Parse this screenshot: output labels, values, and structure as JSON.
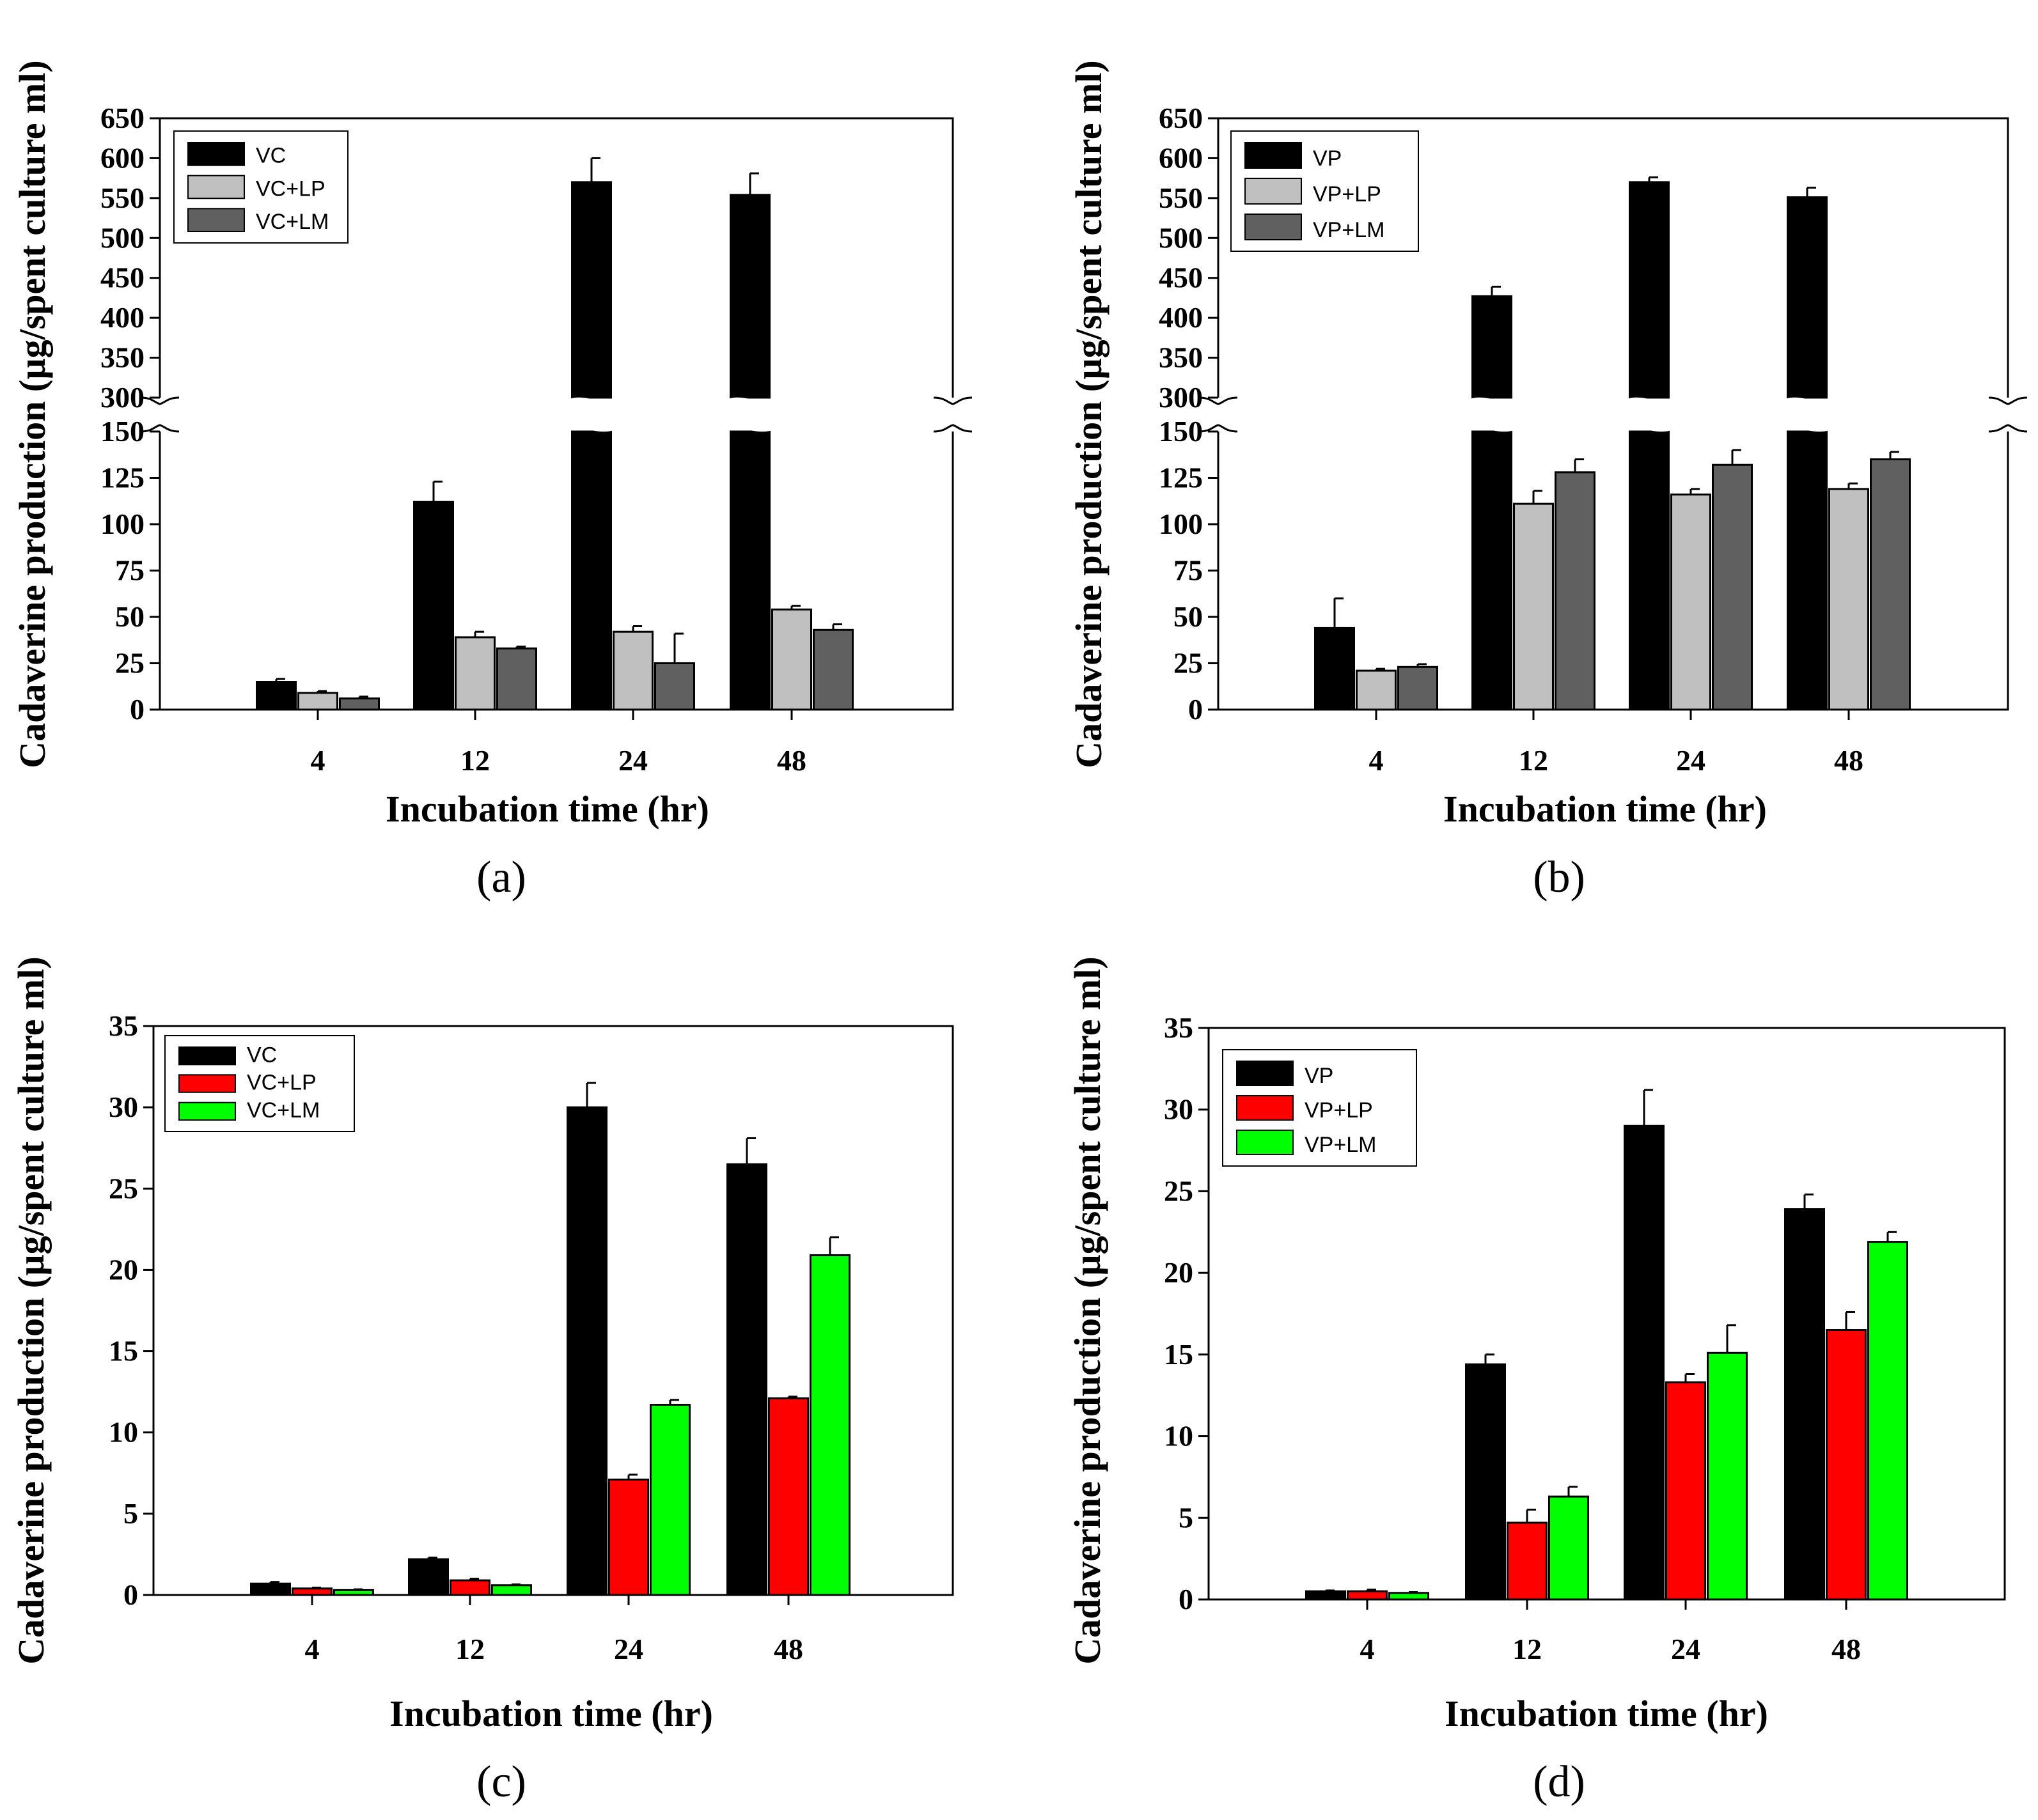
{
  "figure": {
    "panel_labels": [
      "(a)",
      "(b)",
      "(c)",
      "(d)"
    ]
  },
  "chart_data": [
    {
      "type": "bar",
      "panel": "(a)",
      "ylabel": "Cadaverine production (µg/spent culture ml)",
      "xlabel": "Incubation time (hr)",
      "categories": [
        "4",
        "12",
        "24",
        "48"
      ],
      "axis_break": {
        "lower": [
          0,
          150
        ],
        "upper": [
          300,
          650
        ]
      },
      "yticks_lower": [
        0,
        25,
        50,
        75,
        100,
        125,
        150
      ],
      "yticks_upper": [
        300,
        350,
        400,
        450,
        500,
        550,
        600,
        650
      ],
      "legend_position": "top-left",
      "series": [
        {
          "name": "VC",
          "color": "#000000",
          "values": [
            15,
            112,
            570,
            554
          ],
          "errors": [
            1.5,
            11,
            30,
            27
          ]
        },
        {
          "name": "VC+LP",
          "color": "#c0c0c0",
          "values": [
            9,
            39,
            42,
            54
          ],
          "errors": [
            1,
            3,
            3,
            2
          ]
        },
        {
          "name": "VC+LM",
          "color": "#606060",
          "values": [
            6,
            33,
            25,
            43
          ],
          "errors": [
            1,
            1,
            16,
            3
          ]
        }
      ]
    },
    {
      "type": "bar",
      "panel": "(b)",
      "ylabel": "Cadaverine production (µg/spent culture ml)",
      "xlabel": "Incubation time (hr)",
      "categories": [
        "4",
        "12",
        "24",
        "48"
      ],
      "axis_break": {
        "lower": [
          0,
          150
        ],
        "upper": [
          300,
          650
        ]
      },
      "yticks_lower": [
        0,
        25,
        50,
        75,
        100,
        125,
        150
      ],
      "yticks_upper": [
        300,
        350,
        400,
        450,
        500,
        550,
        600,
        650
      ],
      "legend_position": "top-left",
      "series": [
        {
          "name": "VP",
          "color": "#000000",
          "values": [
            44,
            427,
            570,
            551
          ],
          "errors": [
            16,
            12,
            6,
            12
          ]
        },
        {
          "name": "VP+LP",
          "color": "#c0c0c0",
          "values": [
            21,
            111,
            116,
            119
          ],
          "errors": [
            1,
            7,
            3,
            3
          ]
        },
        {
          "name": "VP+LM",
          "color": "#606060",
          "values": [
            23,
            128,
            132,
            135
          ],
          "errors": [
            1.5,
            7,
            8,
            4
          ]
        }
      ]
    },
    {
      "type": "bar",
      "panel": "(c)",
      "ylabel": "Cadaverine production (µg/spent culture ml)",
      "xlabel": "Incubation time (hr)",
      "categories": [
        "4",
        "12",
        "24",
        "48"
      ],
      "ylim": [
        0,
        35
      ],
      "yticks": [
        0,
        5,
        10,
        15,
        20,
        25,
        30,
        35
      ],
      "legend_position": "top-left",
      "series": [
        {
          "name": "VC",
          "color": "#000000",
          "values": [
            0.7,
            2.2,
            30.0,
            26.5
          ],
          "errors": [
            0.1,
            0.1,
            1.5,
            1.6
          ]
        },
        {
          "name": "VC+LP",
          "color": "#ff0000",
          "values": [
            0.4,
            0.9,
            7.1,
            12.1
          ],
          "errors": [
            0.05,
            0.1,
            0.3,
            0.1
          ]
        },
        {
          "name": "VC+LM",
          "color": "#00ff00",
          "values": [
            0.3,
            0.6,
            11.7,
            20.9
          ],
          "errors": [
            0.05,
            0.05,
            0.3,
            1.1
          ]
        }
      ]
    },
    {
      "type": "bar",
      "panel": "(d)",
      "ylabel": "Cadaverine production (µg/spent culture ml)",
      "xlabel": "Incubation time (hr)",
      "categories": [
        "4",
        "12",
        "24",
        "48"
      ],
      "ylim": [
        0,
        35
      ],
      "yticks": [
        0,
        5,
        10,
        15,
        20,
        25,
        30,
        35
      ],
      "legend_position": "top-left",
      "series": [
        {
          "name": "VP",
          "color": "#000000",
          "values": [
            0.5,
            14.4,
            29.0,
            23.9
          ],
          "errors": [
            0.05,
            0.6,
            2.2,
            0.9
          ]
        },
        {
          "name": "VP+LP",
          "color": "#ff0000",
          "values": [
            0.5,
            4.7,
            13.3,
            16.5
          ],
          "errors": [
            0.1,
            0.8,
            0.5,
            1.1
          ]
        },
        {
          "name": "VP+LM",
          "color": "#00ff00",
          "values": [
            0.4,
            6.3,
            15.1,
            21.9
          ],
          "errors": [
            0.05,
            0.6,
            1.7,
            0.6
          ]
        }
      ]
    }
  ]
}
